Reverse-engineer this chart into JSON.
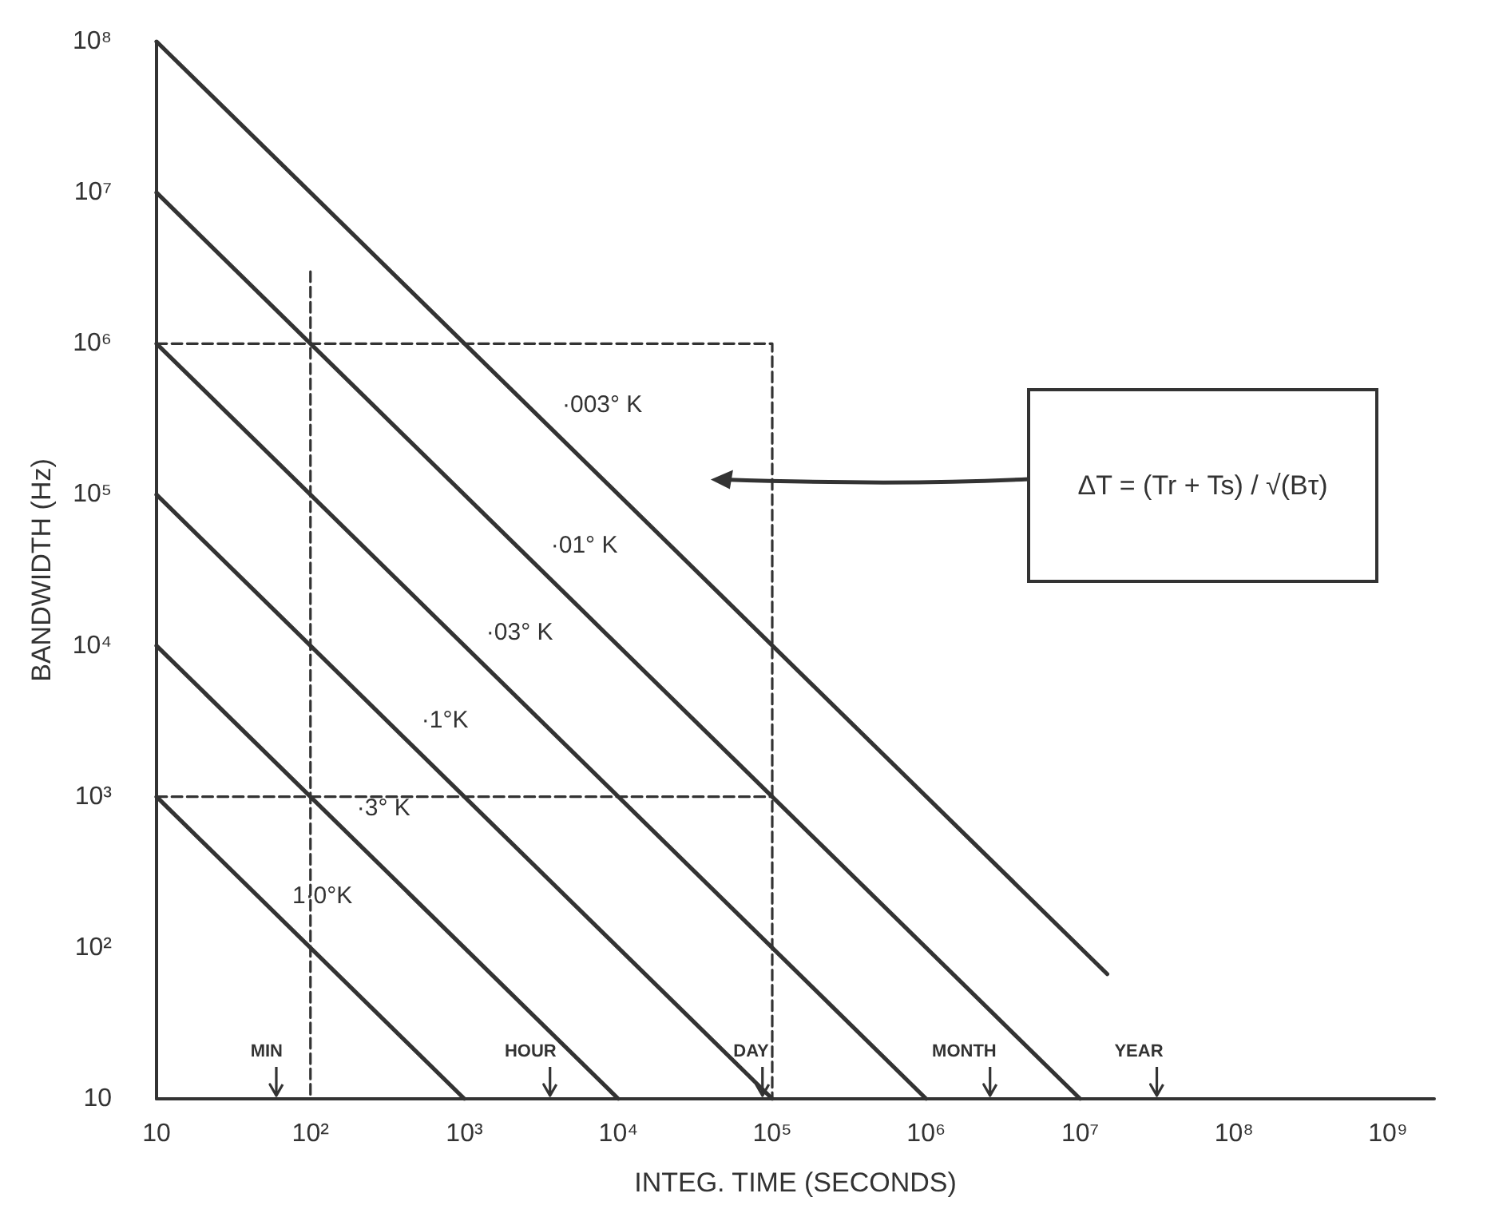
{
  "chart_data": {
    "type": "line",
    "xlabel": "INTEG. TIME (SECONDS)",
    "ylabel": "BANDWIDTH (Hz)",
    "log": "xy",
    "grid": false,
    "marker": "none",
    "line_style": "solid",
    "xlim": [
      10,
      2000000000
    ],
    "ylim": [
      10,
      100000000
    ],
    "xticks": [
      10,
      {
        "value": 100,
        "label": "10²"
      },
      {
        "value": 1000,
        "label": "10³"
      },
      {
        "value": 10000,
        "label": "10⁴"
      },
      {
        "value": 100000,
        "label": "10⁵"
      },
      {
        "value": 1000000,
        "label": "10⁶"
      },
      {
        "value": 10000000,
        "label": "10⁷"
      },
      {
        "value": 100000000,
        "label": "10⁸"
      },
      {
        "value": 1000000000,
        "label": "10⁹"
      }
    ],
    "yticks": [
      10,
      {
        "value": 100,
        "label": "10²"
      },
      {
        "value": 1000,
        "label": "10³"
      },
      {
        "value": 10000,
        "label": "10⁴"
      },
      {
        "value": 100000,
        "label": "10⁵"
      },
      {
        "value": 1000000,
        "label": "10⁶"
      },
      {
        "value": 10000000,
        "label": "10⁷"
      },
      {
        "value": 100000000,
        "label": "10⁸"
      }
    ],
    "series": [
      {
        "name": "1·0°K",
        "color": "#333333",
        "x": [
          10,
          1000
        ],
        "values": [
          1000,
          10
        ]
      },
      {
        "name": "·3° K",
        "color": "#333333",
        "x": [
          10,
          10000
        ],
        "values": [
          10000,
          10
        ]
      },
      {
        "name": "·1°K",
        "color": "#333333",
        "x": [
          10,
          100000
        ],
        "values": [
          100000,
          10
        ]
      },
      {
        "name": "·03° K",
        "color": "#333333",
        "x": [
          10,
          1000000
        ],
        "values": [
          1000000,
          10
        ]
      },
      {
        "name": "·01° K",
        "color": "#333333",
        "x": [
          10,
          10000000
        ],
        "values": [
          10000000,
          10
        ]
      },
      {
        "name": "·003° K",
        "color": "#333333",
        "x": [
          10,
          15000000
        ],
        "values": [
          100000000,
          67
        ]
      },
      {
        "color": "#333333",
        "line_style": "dashed",
        "x": [
          100,
          100
        ],
        "values": [
          3000000,
          10
        ]
      },
      {
        "color": "#333333",
        "line_style": "dashed",
        "x": [
          10,
          100000,
          100000
        ],
        "values": [
          1000000,
          1000000,
          10
        ]
      },
      {
        "color": "#333333",
        "line_style": "dashed",
        "x": [
          10,
          100000
        ],
        "values": [
          1000,
          1000
        ]
      }
    ],
    "annotations": [
      "ΔT = (Tr + Ts) / √(Bτ)"
    ],
    "ref_lines": [
      {
        "axis": "x",
        "value": 60,
        "label": "MIN"
      },
      {
        "axis": "x",
        "value": 3600,
        "label": "HOUR"
      },
      {
        "axis": "x",
        "value": 86400,
        "label": "DAY"
      },
      {
        "axis": "x",
        "value": 2600000,
        "label": "MONTH"
      },
      {
        "axis": "x",
        "value": 31500000,
        "label": "YEAR"
      }
    ]
  }
}
